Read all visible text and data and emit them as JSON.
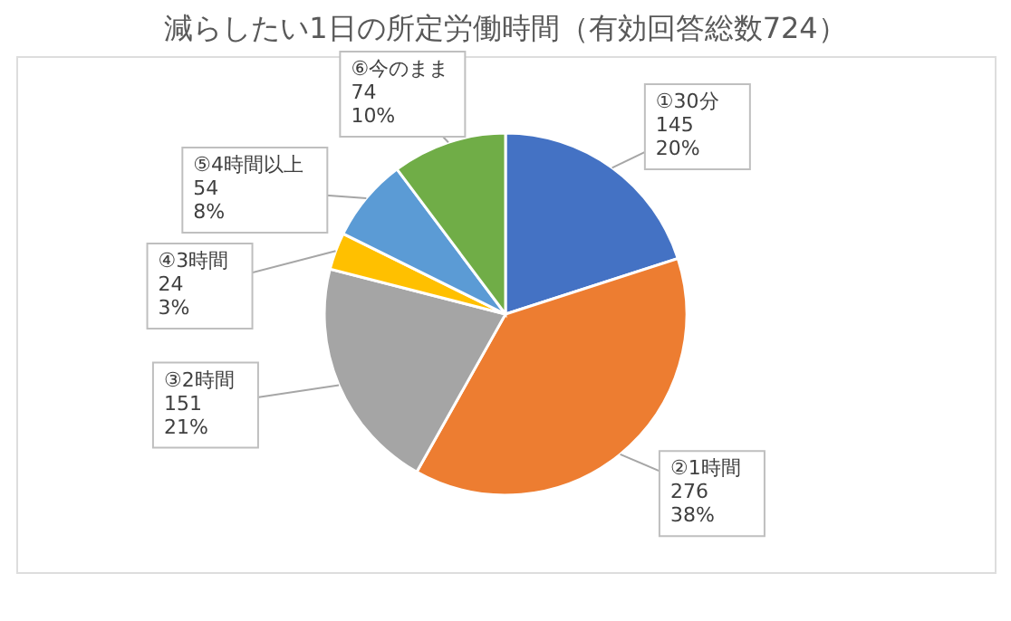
{
  "chart_data": {
    "type": "pie",
    "title": "減らしたい1日の所定労働時間（有効回答総数724）",
    "categories": [
      "①30分",
      "②1時間",
      "③2時間",
      "④3時間",
      "⑤4時間以上",
      "⑥今のまま"
    ],
    "values": [
      145,
      276,
      151,
      24,
      54,
      74
    ],
    "colors": [
      "#4472c4",
      "#ed7d31",
      "#a5a5a5",
      "#ffc000",
      "#5b9bd5",
      "#70ad47"
    ],
    "value_labels": [
      "145\n20%",
      "276\n38%",
      "151\n21%",
      "24\n3%",
      "54\n8%",
      "74\n10%"
    ],
    "legend": false
  }
}
